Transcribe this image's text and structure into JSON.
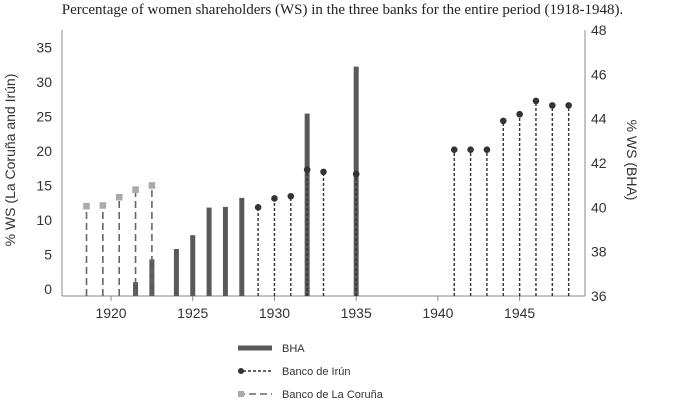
{
  "chart_data": {
    "type": "bar",
    "title": "Percentage of women shareholders (WS) in the three banks for the entire period (1918-1948).",
    "ylabel_left": "% WS (La Coruña and Irún)",
    "ylabel_right": "% WS (BHA)",
    "x_ticks": [
      "1920",
      "1925",
      "1930",
      "1935",
      "1940",
      "1945"
    ],
    "y_left_ticks": [
      "0",
      "5",
      "10",
      "15",
      "20",
      "25",
      "30",
      "35"
    ],
    "y_right_ticks": [
      "36",
      "38",
      "40",
      "42",
      "44",
      "46",
      "48"
    ],
    "xlim": [
      1917,
      1949
    ],
    "ylim_left": [
      -1,
      37.5
    ],
    "ylim_right": [
      36,
      48
    ],
    "series": [
      {
        "name": "BHA",
        "axis": "left",
        "style": "bar",
        "color": "#595959",
        "x": [
          1921.5,
          1922.5,
          1924,
          1925,
          1926,
          1927,
          1928,
          1932,
          1935
        ],
        "values": [
          1.0,
          4.3,
          5.8,
          7.8,
          11.8,
          11.9,
          13.2,
          25.4,
          32.2
        ]
      },
      {
        "name": "Banco de Irún",
        "axis": "right",
        "style": "lollipop-short-dash",
        "color": "#333333",
        "x": [
          1929,
          1930,
          1931,
          1932,
          1933,
          1935,
          1941,
          1942,
          1943,
          1944,
          1945,
          1946,
          1947,
          1948
        ],
        "values": [
          40.0,
          40.4,
          40.5,
          41.7,
          41.6,
          41.5,
          42.6,
          42.6,
          42.6,
          43.9,
          44.2,
          44.8,
          44.6,
          44.6
        ]
      },
      {
        "name": "Banco de La Coruña",
        "axis": "left",
        "style": "lollipop-long-dash",
        "color": "#aaaaaa",
        "x": [
          1918.5,
          1919.5,
          1920.5,
          1921.5,
          1922.5
        ],
        "values": [
          12.0,
          12.1,
          13.3,
          14.4,
          15.0
        ]
      }
    ],
    "legend_position": "bottom-center",
    "grid": false
  }
}
